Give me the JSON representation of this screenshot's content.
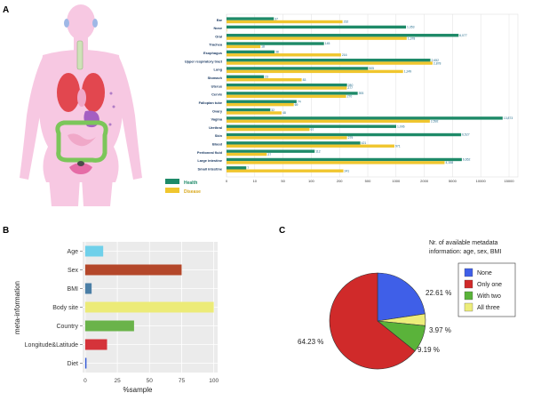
{
  "panel_labels": {
    "a": "A",
    "b": "B",
    "c": "C"
  },
  "colors": {
    "healthy": "#1e8a68",
    "disease": "#f0c62e",
    "skin": "#f7c8e2",
    "organ_red": "#e2474f",
    "pie_none": "#3f5fe8",
    "pie_only_one": "#d02a2a",
    "pie_with_two": "#5ab33a",
    "pie_all_three": "#eded7a"
  },
  "chart_data": [
    {
      "id": "A",
      "type": "bar",
      "orientation": "horizontal",
      "categories": [
        "Ear",
        "Nose",
        "Oral",
        "Trachea",
        "Esophagus",
        "Upper respiratory tract",
        "Lung",
        "Stomach",
        "Uterus",
        "Cervix",
        "Fallopian tube",
        "Ovary",
        "Vagina",
        "Urethral",
        "Skin",
        "Blood",
        "Peritoneal fluid",
        "Large intestine",
        "Small intestine"
      ],
      "series": [
        {
          "name": "Health",
          "values": [
            37,
            1353,
            6077,
            145,
            38,
            2652,
            505,
            23,
            280,
            393,
            74,
            32,
            13873,
            1006,
            6527,
            421,
            112,
            6652,
            7
          ]
        },
        {
          "name": "Disease",
          "values": [
            232,
            0,
            1378,
            18,
            216,
            2878,
            1249,
            83,
            277,
            270,
            69,
            48,
            2592,
            97,
            279,
            971,
            27,
            4158,
            241
          ]
        }
      ],
      "value_labels": [
        {
          "health": "37",
          "disease": "232"
        },
        {
          "health": "1,353",
          "disease": ""
        },
        {
          "health": "6,077",
          "disease": "1,378"
        },
        {
          "health": "145",
          "disease": "18"
        },
        {
          "health": "38",
          "disease": "216"
        },
        {
          "health": "2,652",
          "disease": "2,878"
        },
        {
          "health": "505",
          "disease": "1,249"
        },
        {
          "health": "23",
          "disease": "83"
        },
        {
          "health": "280",
          "disease": "277"
        },
        {
          "health": "393",
          "disease": "270"
        },
        {
          "health": "74",
          "disease": "69"
        },
        {
          "health": "32",
          "disease": "48"
        },
        {
          "health": "13,873",
          "disease": "2,592"
        },
        {
          "health": "1,006",
          "disease": "97"
        },
        {
          "health": "6,527",
          "disease": "279"
        },
        {
          "health": "421",
          "disease": "971"
        },
        {
          "health": "112",
          "disease": "27"
        },
        {
          "health": "6,652",
          "disease": "4,158"
        },
        {
          "health": "7",
          "disease": "241"
        }
      ],
      "x_ticks": [
        0,
        10,
        50,
        100,
        200,
        500,
        1000,
        2000,
        5000,
        10000,
        15000
      ],
      "x_tick_labels": [
        "0",
        "10",
        "50",
        "100",
        "200",
        "500",
        "1000",
        "2000",
        "5000",
        "10000",
        "15000"
      ],
      "legend": [
        {
          "name": "Health",
          "color": "#1e8a68"
        },
        {
          "name": "Disease",
          "color": "#f0c62e"
        }
      ]
    },
    {
      "id": "B",
      "type": "bar",
      "orientation": "horizontal",
      "categories": [
        "Age",
        "Sex",
        "BMI",
        "Body site",
        "Country",
        "Longitude&Latitude",
        "Diet"
      ],
      "values": [
        14,
        75,
        5,
        100,
        38,
        17,
        1
      ],
      "bar_colors": [
        "#6fd0ea",
        "#b4472a",
        "#4b7fa6",
        "#eceb78",
        "#6ab34a",
        "#d5333a",
        "#3359d6"
      ],
      "xlabel": "%sample",
      "ylabel": "meta-information",
      "x_ticks": [
        0,
        25,
        50,
        75,
        100
      ],
      "x_tick_labels": [
        "0",
        "25",
        "50",
        "75",
        "100"
      ],
      "xlim": [
        -2,
        103
      ]
    },
    {
      "id": "C",
      "type": "pie",
      "slices": [
        {
          "name": "None",
          "value": 22.61,
          "label": "22.61 %",
          "color": "#3f5fe8"
        },
        {
          "name": "All three",
          "value": 3.97,
          "label": "3.97 %",
          "color": "#eded7a"
        },
        {
          "name": "With two",
          "value": 9.19,
          "label": "9.19 %",
          "color": "#5ab33a"
        },
        {
          "name": "Only one",
          "value": 64.23,
          "label": "64.23 %",
          "color": "#d02a2a"
        }
      ],
      "legend_title_lines": [
        "Nr. of available metadata",
        "information: age, sex, BMI"
      ],
      "legend": [
        {
          "name": "None",
          "color": "#3f5fe8"
        },
        {
          "name": "Only one",
          "color": "#d02a2a"
        },
        {
          "name": "With two",
          "color": "#5ab33a"
        },
        {
          "name": "All three",
          "color": "#eded7a"
        }
      ]
    }
  ]
}
